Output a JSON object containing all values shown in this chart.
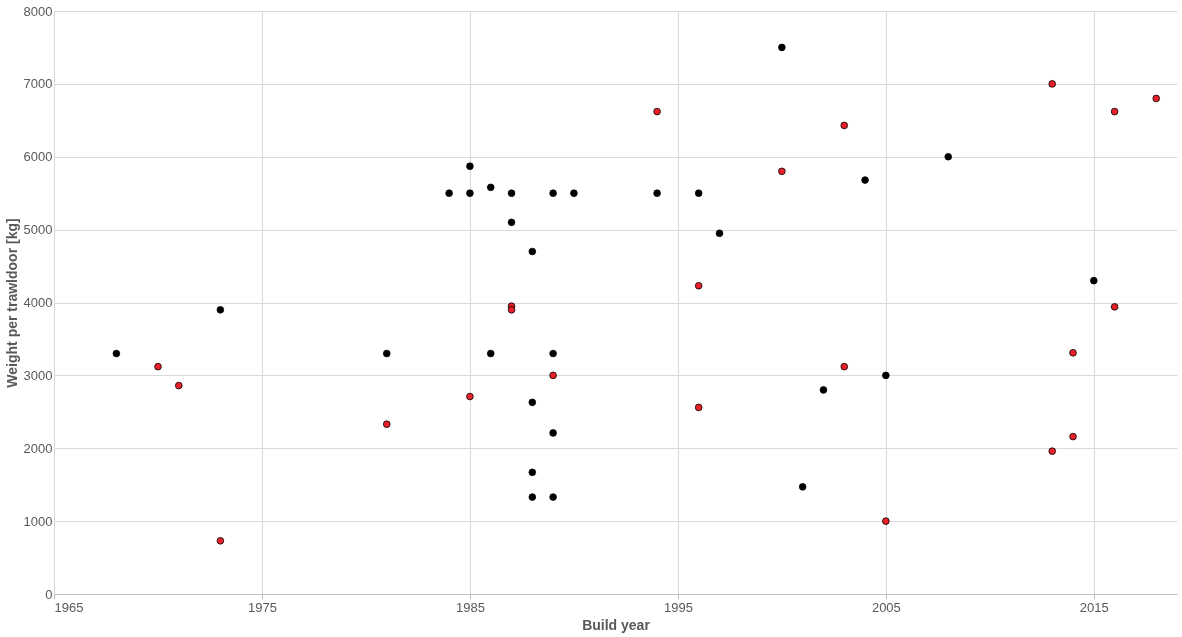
{
  "chart_data": {
    "type": "scatter",
    "xlabel": "Build year",
    "ylabel": "Weight per trawldoor [kg]",
    "xlim": [
      1965,
      2019
    ],
    "xticks": [
      1965,
      1975,
      1985,
      1995,
      2005,
      2015
    ],
    "ylim": [
      0,
      8000
    ],
    "yticks": [
      0,
      1000,
      2000,
      3000,
      4000,
      5000,
      6000,
      7000,
      8000
    ],
    "grid": true,
    "marker": "circle",
    "series": [
      {
        "color": "#000000",
        "x": [
          1968,
          1973,
          1981,
          1984,
          1985,
          1985,
          1986,
          1986,
          1987,
          1987,
          1988,
          1988,
          1988,
          1988,
          1989,
          1989,
          1989,
          1989,
          1990,
          1994,
          1996,
          1997,
          2000,
          2001,
          2002,
          2004,
          2005,
          2008,
          2015
        ],
        "values": [
          3300,
          3900,
          3300,
          5500,
          5870,
          5500,
          5580,
          3300,
          5500,
          5100,
          4700,
          2630,
          1670,
          1330,
          5500,
          3300,
          2210,
          1330,
          5500,
          5500,
          5500,
          4950,
          7500,
          1470,
          2800,
          5680,
          3000,
          6000,
          4300
        ]
      },
      {
        "color": "#e8202a",
        "x": [
          1970,
          1971,
          1973,
          1981,
          1985,
          1987,
          1987,
          1989,
          1994,
          1996,
          1996,
          2000,
          2003,
          2003,
          2005,
          2013,
          2013,
          2014,
          2014,
          2016,
          2016,
          2018
        ],
        "values": [
          3120,
          2860,
          730,
          2330,
          2710,
          3950,
          3900,
          3000,
          6620,
          4230,
          2560,
          5800,
          6430,
          3120,
          1000,
          7000,
          1960,
          3310,
          2160,
          6620,
          3940,
          6800
        ]
      }
    ]
  }
}
